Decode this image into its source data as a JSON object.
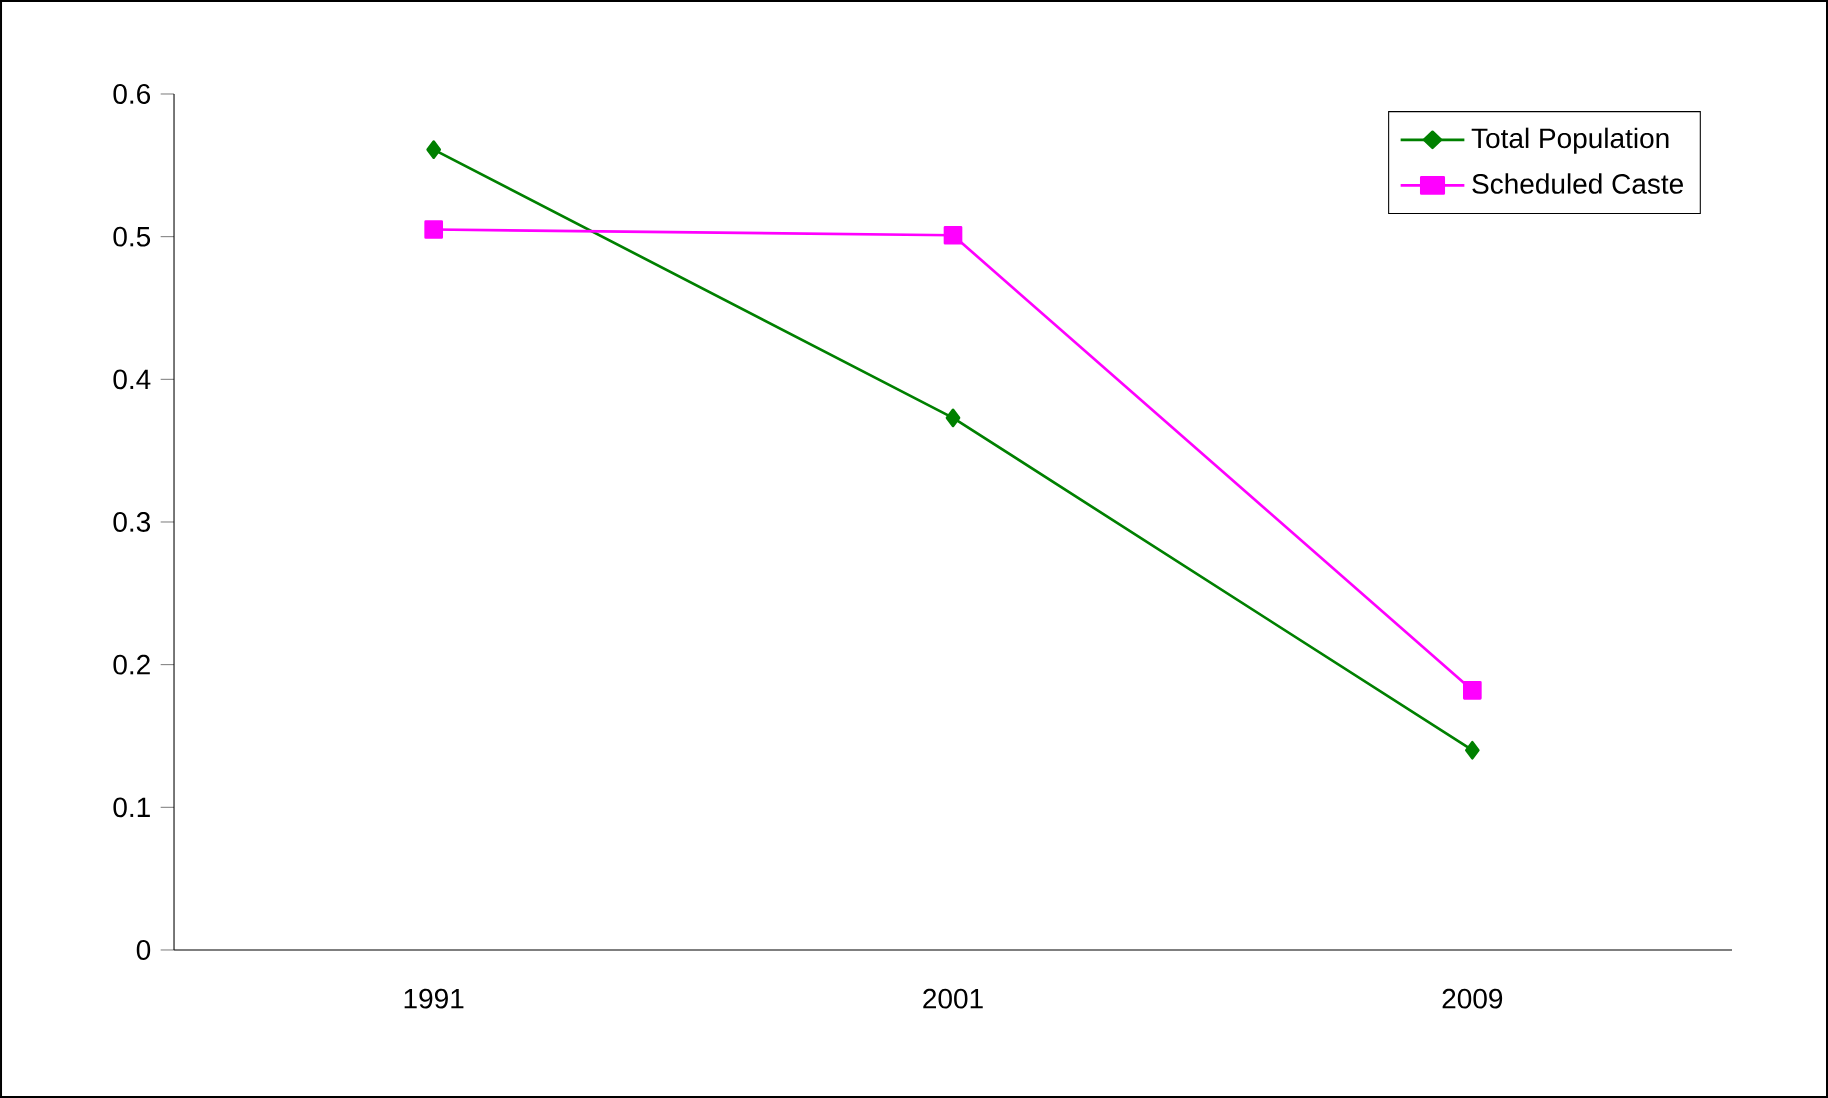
{
  "chart_data": {
    "type": "line",
    "categories": [
      "1991",
      "2001",
      "2009"
    ],
    "series": [
      {
        "name": "Total Population",
        "color": "#008000",
        "marker": "diamond",
        "values": [
          0.561,
          0.373,
          0.14
        ]
      },
      {
        "name": "Scheduled Caste",
        "color": "#ff00ff",
        "marker": "square",
        "values": [
          0.505,
          0.501,
          0.182
        ]
      }
    ],
    "ylim": [
      0,
      0.6
    ],
    "yticks": [
      0,
      0.1,
      0.2,
      0.3,
      0.4,
      0.5,
      0.6
    ],
    "legend": "top right"
  }
}
